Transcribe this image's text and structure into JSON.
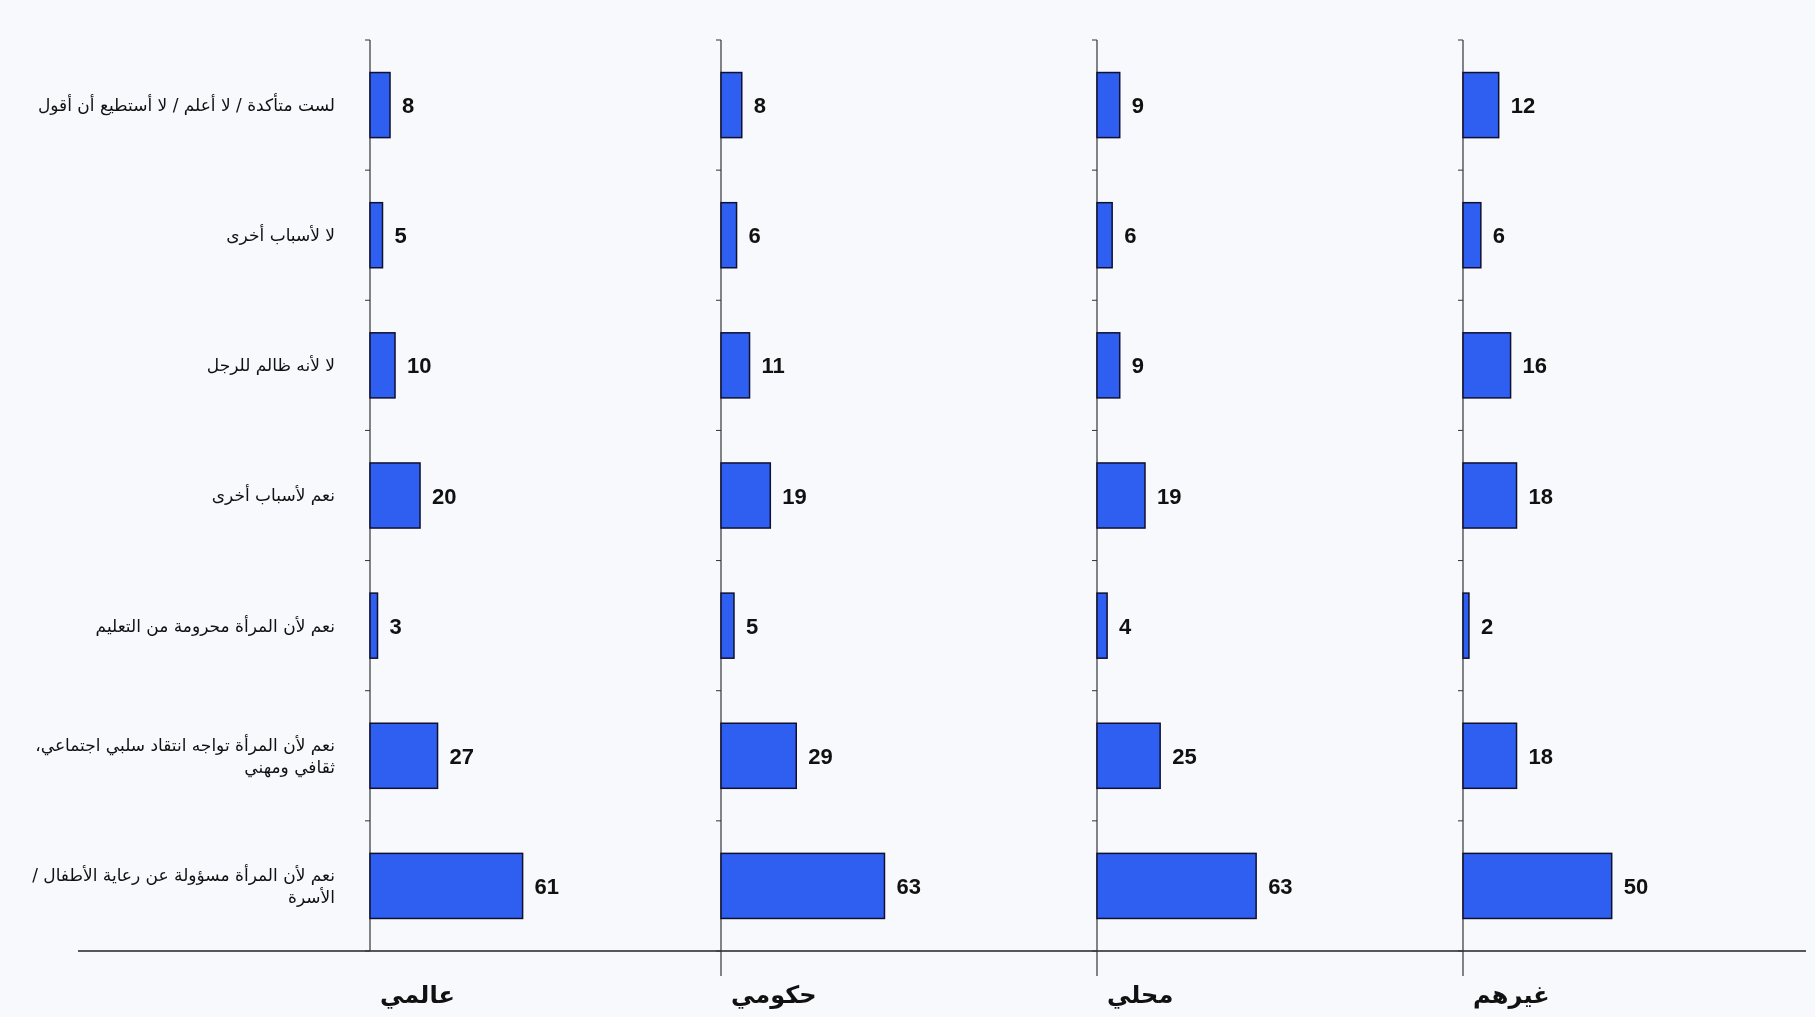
{
  "chart_data": [
    {
      "type": "bar",
      "orientation": "horizontal",
      "xlabel": "عالمي",
      "categories": [
        "لست متأكدة / لا أعلم / لا أستطيع أن أقول",
        "لا لأسباب أخرى",
        "لا لأنه ظالم للرجل",
        "نعم لأسباب أخرى",
        "نعم لأن المرأة محرومة من التعليم",
        "نعم لأن المرأة تواجه انتقاد سلبي اجتماعي، ثقافي ومهني",
        "نعم لأن المرأة مسؤولة عن رعاية الأطفال / الأسرة"
      ],
      "values": [
        8,
        5,
        10,
        20,
        3,
        27,
        61
      ],
      "color": "#2f5ff0",
      "data_labels": true
    },
    {
      "type": "bar",
      "orientation": "horizontal",
      "xlabel": "حكومي",
      "categories": [
        null,
        null,
        null,
        null,
        null,
        null,
        null
      ],
      "values": [
        8,
        6,
        11,
        19,
        5,
        29,
        63
      ],
      "color": "#2f5ff0",
      "data_labels": true
    },
    {
      "type": "bar",
      "orientation": "horizontal",
      "xlabel": "محلي",
      "categories": [
        null,
        null,
        null,
        null,
        null,
        null,
        null
      ],
      "values": [
        9,
        6,
        9,
        19,
        4,
        25,
        63
      ],
      "color": "#2f5ff0",
      "data_labels": true
    },
    {
      "type": "bar",
      "orientation": "horizontal",
      "xlabel": "غيرهم",
      "categories": [
        null,
        null,
        null,
        null,
        null,
        null,
        null
      ],
      "values": [
        12,
        6,
        16,
        18,
        2,
        18,
        50
      ],
      "color": "#2f5ff0",
      "data_labels": true
    }
  ]
}
